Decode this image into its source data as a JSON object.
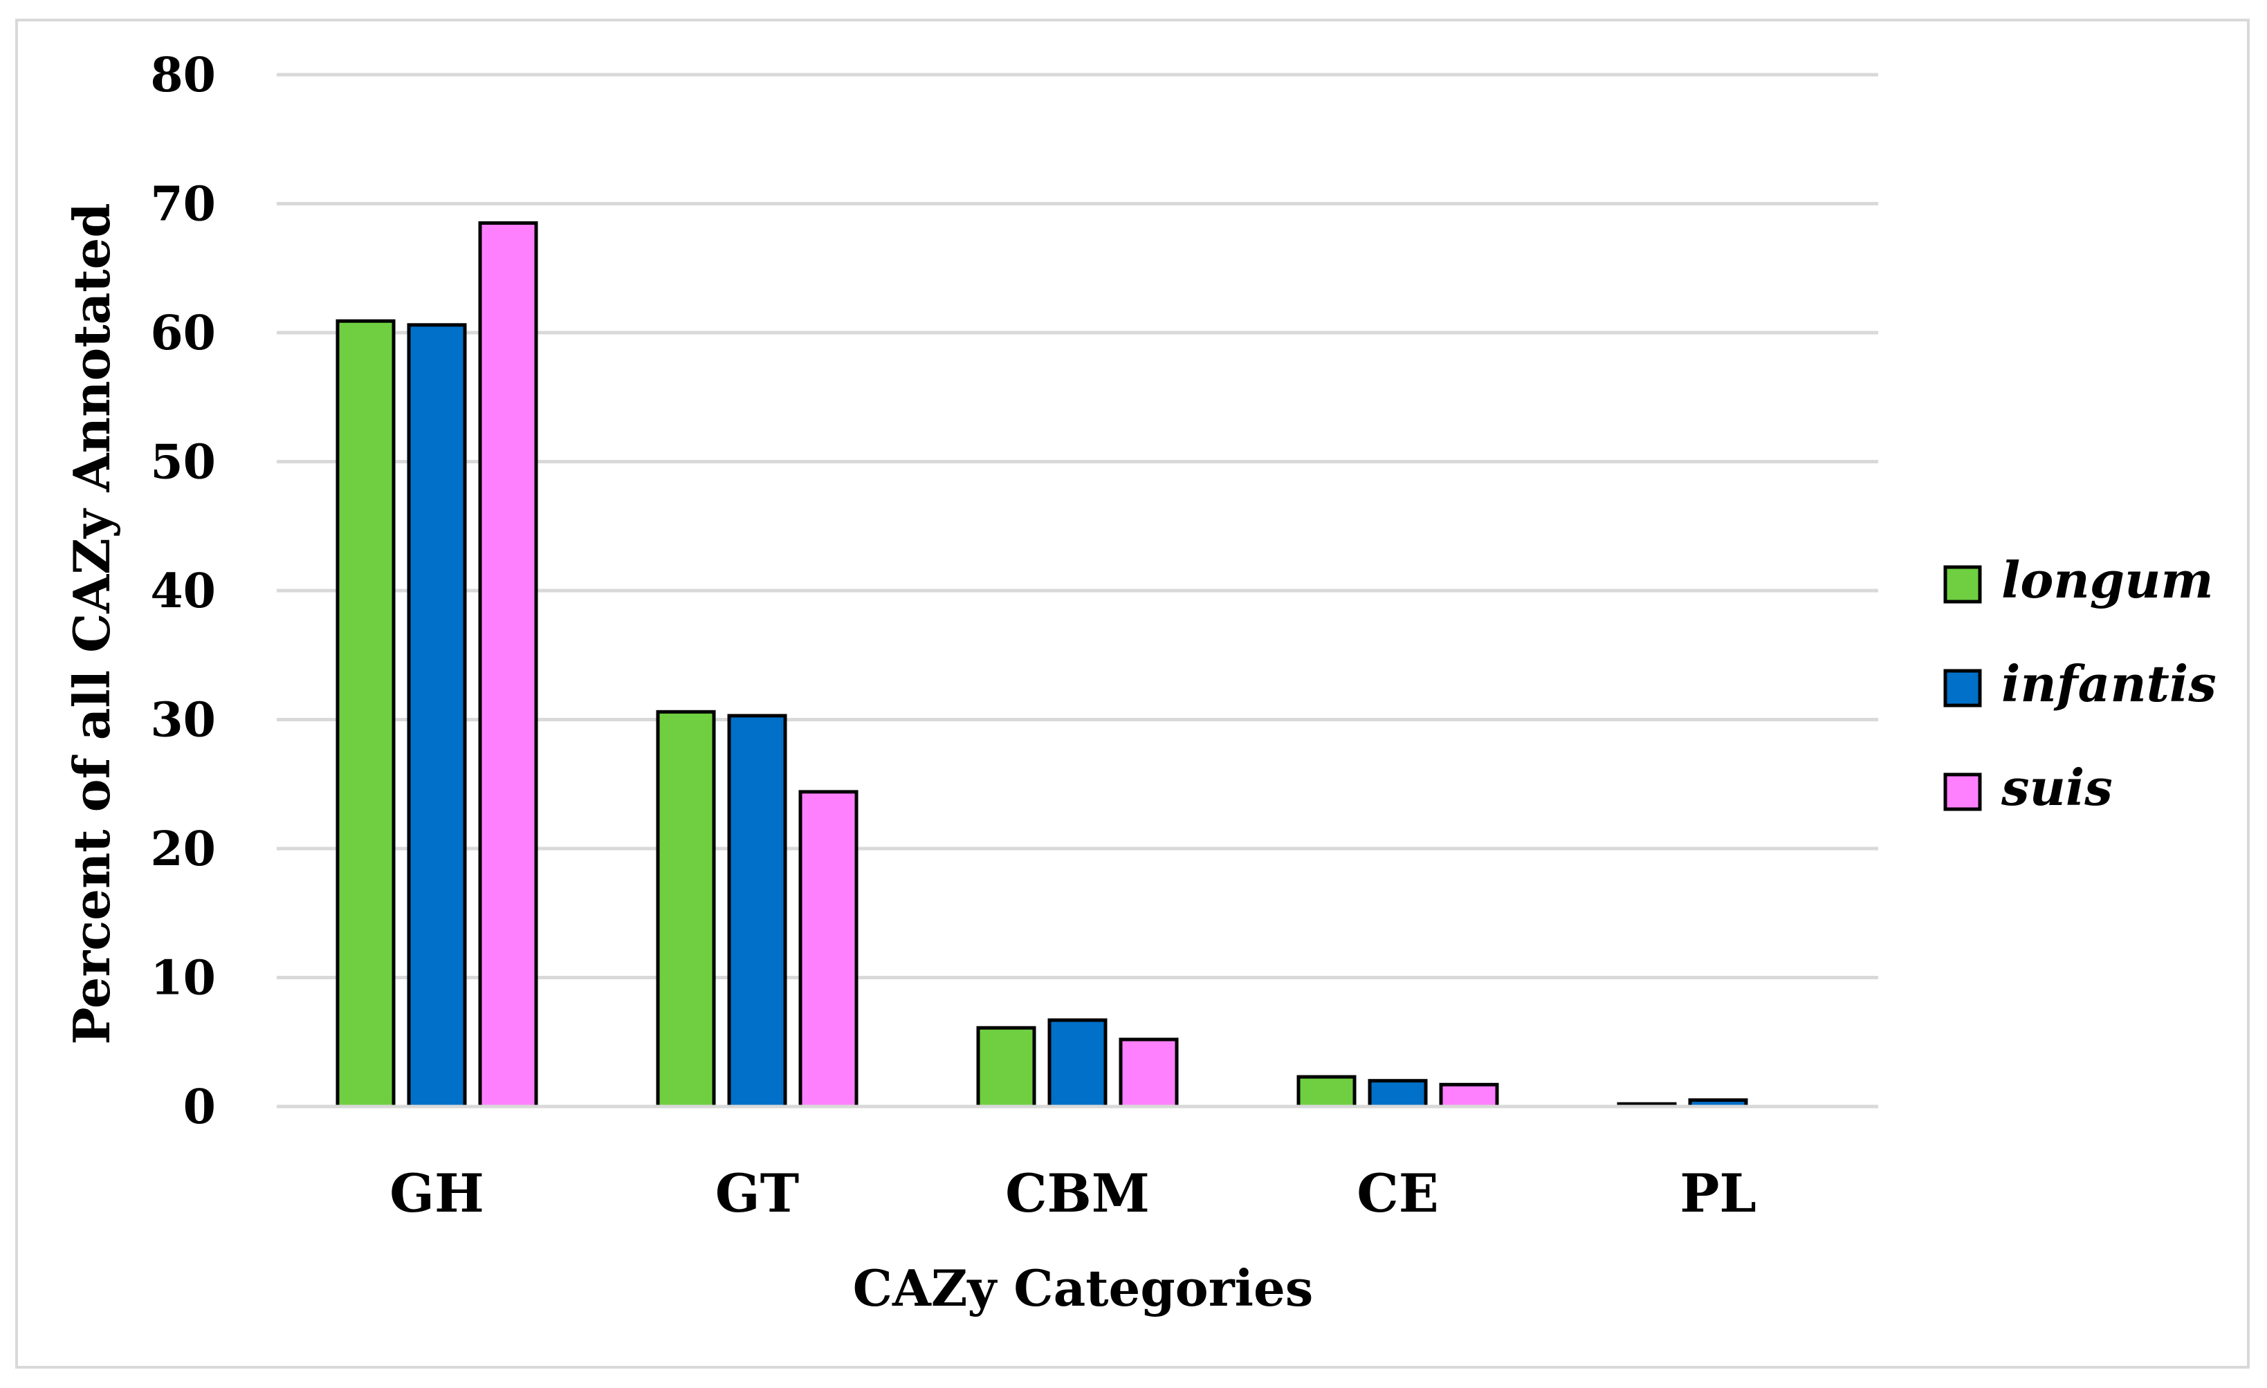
{
  "chart_data": {
    "type": "bar",
    "title": "",
    "xlabel": "CAZy Categories",
    "ylabel": "Percent of all CAZy Annotated",
    "ylim": [
      0,
      80
    ],
    "yticks": [
      0,
      10,
      20,
      30,
      40,
      50,
      60,
      70,
      80
    ],
    "grid": true,
    "legend_position": "right",
    "categories": [
      "GH",
      "GT",
      "CBM",
      "CE",
      "PL"
    ],
    "series": [
      {
        "name": "longum",
        "color": "#6fcf40",
        "values": [
          60.9,
          30.6,
          6.1,
          2.3,
          0.2
        ]
      },
      {
        "name": "infantis",
        "color": "#0070c8",
        "values": [
          60.6,
          30.3,
          6.7,
          2.0,
          0.5
        ]
      },
      {
        "name": "suis",
        "color": "#ff80ff",
        "values": [
          68.5,
          24.4,
          5.2,
          1.7,
          0.0
        ]
      }
    ]
  }
}
